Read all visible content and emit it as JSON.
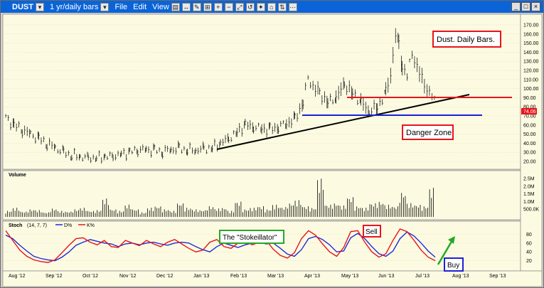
{
  "window": {
    "symbol": "DUST",
    "period": "1 yr/daily bars",
    "menus": [
      "File",
      "Edit",
      "View"
    ]
  },
  "colors": {
    "chart_bg": "#fcfbe2",
    "bar": "#000000",
    "trend_black": "#000000",
    "resistance_red": "#e8141b",
    "support_blue": "#1d21d8",
    "d_line": "#1d2bd8",
    "k_line": "#e8141b",
    "price_tag": "#e8141b"
  },
  "chart_data": {
    "type": "bar",
    "price_axis": {
      "min": 20,
      "max": 170,
      "ticks": [
        "170.00",
        "160.00",
        "150.00",
        "140.00",
        "130.00",
        "120.00",
        "110.00",
        "100.00",
        "90.00",
        "80.00",
        "70.00",
        "60.00",
        "50.00",
        "40.00",
        "30.00",
        "20.00"
      ],
      "last_price": "74.06"
    },
    "volume_panel": {
      "label": "Volume",
      "ticks": [
        "2.5M",
        "2.0M",
        "1.5M",
        "1.0M",
        "500.0K"
      ]
    },
    "stoch_panel": {
      "label": "Stoch",
      "params": "(14, 7, 7)",
      "legend": [
        "D%",
        "K%"
      ],
      "ticks": [
        "80",
        "60",
        "40",
        "20"
      ]
    },
    "x_ticks": [
      "Aug '12",
      "Sep '12",
      "Oct '12",
      "Nov '12",
      "Dec '12",
      "Jan '13",
      "Feb '13",
      "Mar '13",
      "Apr '13",
      "May '13",
      "Jun '13",
      "Jul '13",
      "Aug '13",
      "Sep '13"
    ],
    "price_series": [
      [
        0,
        68
      ],
      [
        5,
        60
      ],
      [
        10,
        55
      ],
      [
        15,
        50
      ],
      [
        20,
        45
      ],
      [
        25,
        40
      ],
      [
        30,
        35
      ],
      [
        35,
        30
      ],
      [
        40,
        27
      ],
      [
        45,
        25
      ],
      [
        50,
        24
      ],
      [
        55,
        24
      ],
      [
        60,
        25
      ],
      [
        65,
        26
      ],
      [
        70,
        28
      ],
      [
        75,
        30
      ],
      [
        80,
        33
      ],
      [
        85,
        33
      ],
      [
        90,
        32
      ],
      [
        95,
        31
      ],
      [
        100,
        33
      ],
      [
        105,
        34
      ],
      [
        110,
        33
      ],
      [
        115,
        32
      ],
      [
        120,
        34
      ],
      [
        125,
        35
      ],
      [
        130,
        40
      ],
      [
        135,
        45
      ],
      [
        140,
        52
      ],
      [
        145,
        60
      ],
      [
        150,
        58
      ],
      [
        155,
        56
      ],
      [
        160,
        55
      ],
      [
        165,
        58
      ],
      [
        170,
        62
      ],
      [
        175,
        66
      ],
      [
        180,
        85
      ],
      [
        183,
        112
      ],
      [
        186,
        102
      ],
      [
        190,
        95
      ],
      [
        195,
        85
      ],
      [
        200,
        90
      ],
      [
        205,
        105
      ],
      [
        210,
        95
      ],
      [
        215,
        85
      ],
      [
        220,
        75
      ],
      [
        225,
        80
      ],
      [
        230,
        95
      ],
      [
        233,
        115
      ],
      [
        236,
        160
      ],
      [
        238,
        148
      ],
      [
        240,
        125
      ],
      [
        243,
        115
      ],
      [
        246,
        138
      ],
      [
        249,
        125
      ],
      [
        252,
        110
      ],
      [
        255,
        100
      ],
      [
        258,
        92
      ],
      [
        260,
        84
      ]
    ],
    "volume_series": [
      0.4,
      0.6,
      0.35,
      0.5,
      0.45,
      0.3,
      0.55,
      0.4,
      0.35,
      0.5,
      0.6,
      0.4,
      0.45,
      1.2,
      0.5,
      0.4,
      0.8,
      0.5,
      0.3,
      0.6,
      0.7,
      0.5,
      0.4,
      0.9,
      0.6,
      0.5,
      0.45,
      0.7,
      0.55,
      0.6,
      0.4,
      1.0,
      0.5,
      0.6,
      0.7,
      0.5,
      0.8,
      0.65,
      0.9,
      1.1,
      0.7,
      0.6,
      2.5,
      0.8,
      0.9,
      0.75,
      1.3,
      0.7,
      0.6,
      0.9,
      1.0,
      0.8,
      0.7,
      1.6,
      0.9,
      0.8,
      0.7,
      1.9
    ],
    "stoch_d": [
      78,
      70,
      55,
      42,
      30,
      25,
      22,
      20,
      28,
      40,
      55,
      62,
      68,
      64,
      60,
      58,
      52,
      58,
      60,
      56,
      60,
      62,
      58,
      55,
      60,
      62,
      60,
      52,
      45,
      40,
      52,
      60,
      55,
      50,
      56,
      60,
      62,
      58,
      60,
      48,
      35,
      30,
      45,
      70,
      75,
      68,
      56,
      40,
      42,
      72,
      82,
      70,
      52,
      36,
      30,
      42,
      70,
      85,
      76,
      60,
      42,
      28
    ],
    "stoch_k": [
      88,
      66,
      44,
      30,
      22,
      18,
      16,
      22,
      38,
      55,
      70,
      72,
      62,
      56,
      66,
      52,
      50,
      66,
      60,
      54,
      66,
      58,
      52,
      62,
      68,
      58,
      48,
      40,
      44,
      62,
      68,
      52,
      48,
      60,
      66,
      56,
      62,
      66,
      46,
      32,
      26,
      38,
      70,
      88,
      78,
      58,
      40,
      30,
      50,
      86,
      88,
      62,
      40,
      28,
      36,
      66,
      92,
      86,
      66,
      44,
      28,
      20
    ],
    "annotations": {
      "title": "Dust.  Daily Bars.",
      "danger": "Danger Zone",
      "stokeillator": "The \"Stokeillator\"",
      "sell": "Sell",
      "buy": "Buy"
    }
  }
}
